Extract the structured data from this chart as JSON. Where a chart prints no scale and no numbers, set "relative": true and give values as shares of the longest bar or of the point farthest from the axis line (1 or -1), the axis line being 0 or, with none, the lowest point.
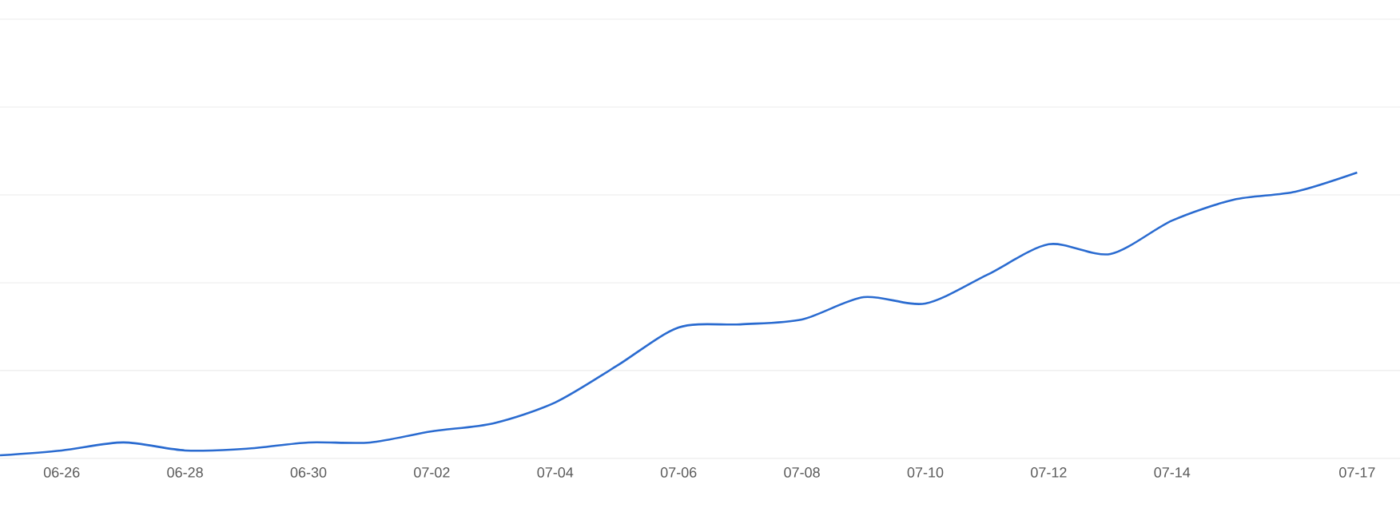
{
  "chart_data": {
    "type": "line",
    "relative": true,
    "grid": "y",
    "marker": "none",
    "line_style": "solid",
    "categories": [
      null,
      "06-26",
      null,
      "06-28",
      null,
      "06-30",
      null,
      "07-02",
      null,
      "07-04",
      null,
      "07-06",
      null,
      "07-08",
      null,
      "07-10",
      null,
      "07-12",
      null,
      "07-14",
      null,
      null,
      "07-17"
    ],
    "series": [
      {
        "color": "#2a6bd0",
        "values": [
          0.011,
          0.028,
          0.056,
          0.028,
          0.034,
          0.056,
          0.056,
          0.095,
          0.123,
          0.196,
          0.324,
          0.458,
          0.469,
          0.486,
          0.564,
          0.542,
          0.642,
          0.749,
          0.715,
          0.832,
          0.905,
          0.933,
          1
        ]
      }
    ]
  }
}
